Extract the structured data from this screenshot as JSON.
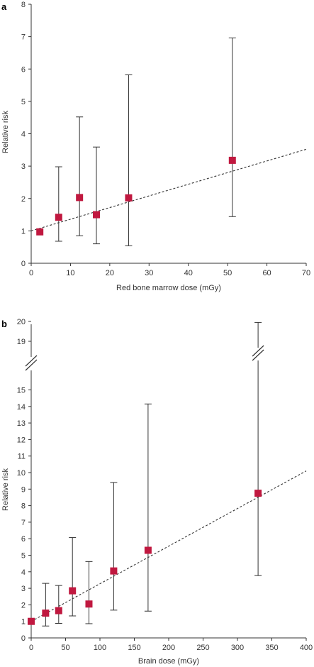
{
  "chart_data": [
    {
      "type": "scatter",
      "panel_label": "a",
      "xlabel": "Red bone marrow dose (mGy)",
      "ylabel": "Relative risk",
      "xlim": [
        0,
        70
      ],
      "ylim": [
        0,
        8
      ],
      "xticks": [
        0,
        10,
        20,
        30,
        40,
        50,
        60,
        70
      ],
      "yticks": [
        0,
        1,
        2,
        3,
        4,
        5,
        6,
        7,
        8
      ],
      "grid": false,
      "points": [
        {
          "x": 2.2,
          "y": 0.97,
          "lower": 0.97,
          "upper": 0.97
        },
        {
          "x": 7.0,
          "y": 1.42,
          "lower": 0.68,
          "upper": 2.98
        },
        {
          "x": 12.3,
          "y": 2.03,
          "lower": 0.85,
          "upper": 4.52
        },
        {
          "x": 16.6,
          "y": 1.5,
          "lower": 0.6,
          "upper": 3.59
        },
        {
          "x": 24.8,
          "y": 2.02,
          "lower": 0.54,
          "upper": 5.82
        },
        {
          "x": 51.2,
          "y": 3.18,
          "lower": 1.44,
          "upper": 6.96
        }
      ],
      "trend": {
        "x": [
          0,
          70
        ],
        "y": [
          1.0,
          3.52
        ]
      },
      "colors": {
        "marker": "#c0183f",
        "line": "#333333"
      }
    },
    {
      "type": "scatter",
      "panel_label": "b",
      "xlabel": "Brain dose (mGy)",
      "ylabel": "Relative risk",
      "xlim": [
        0,
        400
      ],
      "ylim": [
        0,
        20
      ],
      "axis_break": [
        15.8,
        18.6
      ],
      "xticks": [
        0,
        50,
        100,
        150,
        200,
        250,
        300,
        350,
        400
      ],
      "yticks": [
        0,
        1,
        2,
        3,
        4,
        5,
        6,
        7,
        8,
        9,
        10,
        11,
        12,
        13,
        14,
        15,
        19,
        20
      ],
      "grid": false,
      "points": [
        {
          "x": 0,
          "y": 1.0,
          "lower": 1.0,
          "upper": 1.0
        },
        {
          "x": 21,
          "y": 1.5,
          "lower": 0.72,
          "upper": 3.3
        },
        {
          "x": 40,
          "y": 1.65,
          "lower": 0.88,
          "upper": 3.17
        },
        {
          "x": 60,
          "y": 2.85,
          "lower": 1.33,
          "upper": 6.07
        },
        {
          "x": 84,
          "y": 2.05,
          "lower": 0.86,
          "upper": 4.62
        },
        {
          "x": 120,
          "y": 4.05,
          "lower": 1.68,
          "upper": 9.4
        },
        {
          "x": 170,
          "y": 5.3,
          "lower": 1.62,
          "upper": 14.15
        },
        {
          "x": 330,
          "y": 8.75,
          "lower": 3.77,
          "upper": 19.95
        }
      ],
      "trend": {
        "x": [
          0,
          400
        ],
        "y": [
          1.0,
          10.1
        ]
      },
      "colors": {
        "marker": "#c0183f",
        "line": "#333333"
      }
    }
  ]
}
